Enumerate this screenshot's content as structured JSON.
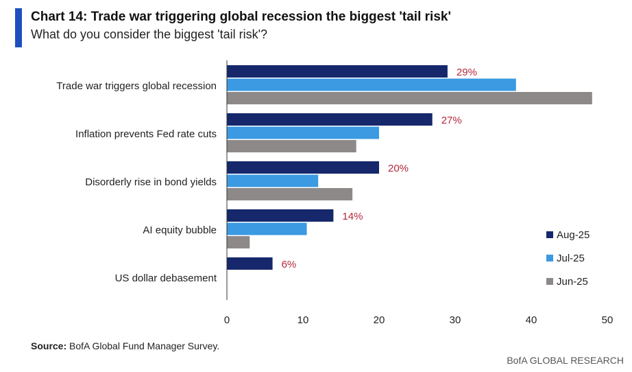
{
  "header": {
    "title": "Chart 14: Trade war triggering global recession the biggest 'tail risk'",
    "subtitle": "What do you consider the biggest 'tail risk'?"
  },
  "footer": {
    "source_label": "Source:",
    "source_text": " BofA Global Fund Manager Survey.",
    "brand": "BofA GLOBAL RESEARCH"
  },
  "chart_data": {
    "type": "bar",
    "orientation": "horizontal",
    "title": "Chart 14: Trade war triggering global recession the biggest 'tail risk'",
    "categories": [
      "Trade war triggers global recession",
      "Inflation prevents Fed rate cuts",
      "Disorderly rise in bond yields",
      "AI equity bubble",
      "US dollar debasement"
    ],
    "series": [
      {
        "name": "Aug-25",
        "color": "#16286b",
        "values": [
          29,
          27,
          20,
          14,
          6
        ],
        "labels": [
          "29%",
          "27%",
          "20%",
          "14%",
          "6%"
        ]
      },
      {
        "name": "Jul-25",
        "color": "#3b9ae1",
        "values": [
          38,
          20,
          12,
          10.5,
          0
        ]
      },
      {
        "name": "Jun-25",
        "color": "#8e8989",
        "values": [
          48,
          17,
          16.5,
          3,
          0
        ]
      }
    ],
    "xlim": [
      0,
      50
    ],
    "xticks": [
      0,
      10,
      20,
      30,
      40,
      50
    ],
    "legend": "bottom-right",
    "label_color": "#b3283d",
    "grid": false
  }
}
